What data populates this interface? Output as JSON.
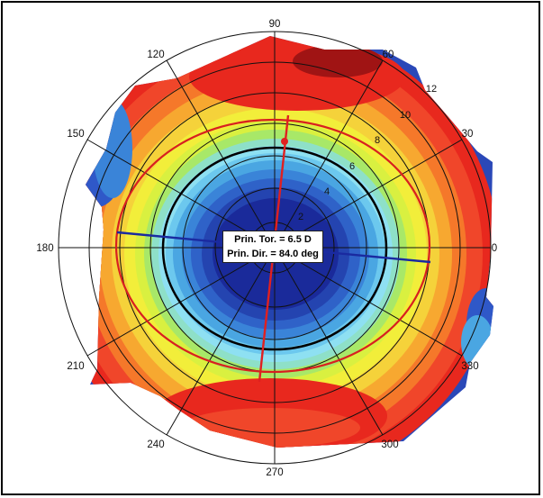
{
  "polar_axis": {
    "angle_labels": [
      "0",
      "30",
      "60",
      "90",
      "120",
      "150",
      "180",
      "210",
      "240",
      "270",
      "300",
      "330"
    ],
    "ring_labels": [
      "2",
      "4",
      "6",
      "8",
      "10",
      "12"
    ]
  },
  "info_box": {
    "line1": "Prin. Tor. = 6.5 D",
    "line2": "Prin. Dir. = 84.0 deg"
  },
  "principal_direction_deg": 84.0,
  "colors": {
    "deep_blue": "#1a2a9a",
    "blue": "#2f58c8",
    "light_blue": "#6cb8ea",
    "cyan": "#8ee0f2",
    "yellow": "#f2ee3a",
    "orange": "#f29a24",
    "red": "#e8281e",
    "dark_red": "#a01414",
    "axis_line": "#1a2aa0",
    "principal_line": "#e02020",
    "ellipse_red": "#d82020"
  }
}
